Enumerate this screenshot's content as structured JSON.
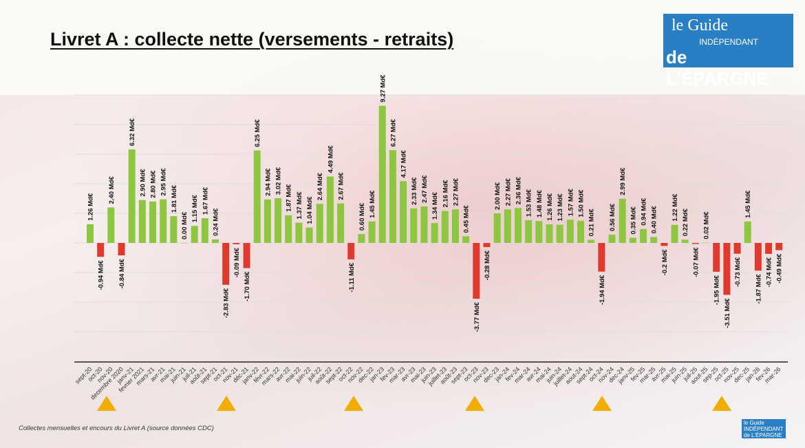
{
  "title": "Livret A : collecte nette (versements - retraits)",
  "logo": {
    "line1": "le Guide",
    "line2": "INDÉPENDANT",
    "line3": "de L'ÉPARGNE"
  },
  "footer": "Collectes mensuelles et encours du Livret A (source données CDC)",
  "colors": {
    "positive": "#8dc63f",
    "negative": "#e03a2f",
    "marker": "#f2ae00",
    "logo": "#2a7fc4"
  },
  "chart_data": {
    "type": "bar",
    "title": "Livret A : collecte nette (versements - retraits)",
    "unit_suffix": " Md€",
    "ylim": [
      -8,
      10
    ],
    "grid": true,
    "categories": [
      "sept-20",
      "oct-20",
      "nov-20",
      "decembre 2020",
      "janv-21",
      "fevrier 2021",
      "mars-21",
      "avr-21",
      "mai-21",
      "juin-21",
      "juil-21",
      "août-21",
      "sept-21",
      "oct-21",
      "nov-21",
      "déc-21",
      "janv-22",
      "févr-22",
      "mars-22",
      "avr-22",
      "mai-22",
      "juin-22",
      "juil-22",
      "août-22",
      "sept-22",
      "oct-22",
      "nov-22",
      "dec-22",
      "jan-23",
      "fev-23",
      "mar-23",
      "avr-23",
      "mai-23",
      "juin-23",
      "juillet-23",
      "août-23",
      "sept-23",
      "oct-23",
      "nov-23",
      "dec-23",
      "jan-24",
      "fev-24",
      "mar-24",
      "avr-24",
      "mai-24",
      "juin-24",
      "juillet-24",
      "aout-24",
      "sept-24",
      "oct-24",
      "nov-24",
      "dec-24",
      "janv-25",
      "fev-25",
      "mar-25",
      "avr-25",
      "mai-25",
      "juin-25",
      "juil-25",
      "aout-25",
      "sep-25",
      "oct-25",
      "nov-25",
      "dec-25",
      "jan-26",
      "fev-26",
      "mar-26"
    ],
    "values": [
      1.26,
      -0.94,
      2.4,
      -0.84,
      6.32,
      2.9,
      2.8,
      2.95,
      1.81,
      0.0,
      1.15,
      1.67,
      0.24,
      -2.83,
      -0.09,
      -1.7,
      6.25,
      2.94,
      3.02,
      1.87,
      1.37,
      1.04,
      2.64,
      4.49,
      2.67,
      -1.11,
      0.6,
      1.45,
      9.27,
      6.27,
      4.17,
      2.33,
      2.47,
      1.34,
      2.16,
      2.27,
      0.45,
      -3.77,
      -0.28,
      2.0,
      2.27,
      2.36,
      1.53,
      1.48,
      1.26,
      1.23,
      1.57,
      1.5,
      0.21,
      -1.94,
      0.56,
      2.99,
      0.35,
      0.94,
      0.4,
      -0.2,
      1.22,
      0.22,
      -0.07,
      0.02,
      -1.95,
      -3.51,
      -0.73,
      1.45,
      -1.87,
      -0.74,
      -0.49
    ],
    "labels": [
      "1.26 Md€",
      "-0.94 Md€",
      "2.40 Md€",
      "-0.84 Md€",
      "6.32 Md€",
      "2.90 Md€",
      "2.80 Md€",
      "2.95 Md€",
      "1.81 Md€",
      "0.00 Md€",
      "1.15 Md€",
      "1.67 Md€",
      "0.24 Md€",
      "-2.83 Md€",
      "-0.09 Md€",
      "-1.70 Md€",
      "6.25 Md€",
      "2.94 Md€",
      "3.02 Md€",
      "1.87 Md€",
      "1.37 Md€",
      "1.04 Md€",
      "2.64 Md€",
      "4.49 Md€",
      "2.67 Md€",
      "-1.11 Md€",
      "0.60 Md€",
      "1.45 Md€",
      "9.27 Md€",
      "6.27 Md€",
      "4.17 Md€",
      "2.33 Md€",
      "2.47 Md€",
      "1.34 Md€",
      "2.16 Md€",
      "2.27 Md€",
      "0.45 Md€",
      "-3.77 Md€",
      "-0.28 Md€",
      "2.00 Md€",
      "2.27 Md€",
      "2.36 Md€",
      "1.53 Md€",
      "1.48 Md€",
      "1.26 Md€",
      "1.23 Md€",
      "1.57 Md€",
      "1.50 Md€",
      "0.21 Md€",
      "-1.94 Md€",
      "0.56 Md€",
      "2.99 Md€",
      "0.35 Md€",
      "0.94 Md€",
      "0.40 Md€",
      "-0.2 Md€",
      "1.22 Md€",
      "0.22 Md€",
      "-0.07 Md€",
      "0.02 Md€",
      "-1.95 Md€",
      "-3.51 Md€",
      "-0.73 Md€",
      "1.45 Md€",
      "-1.87 Md€",
      "-0.74 Md€",
      "-0.49 Md€"
    ]
  }
}
